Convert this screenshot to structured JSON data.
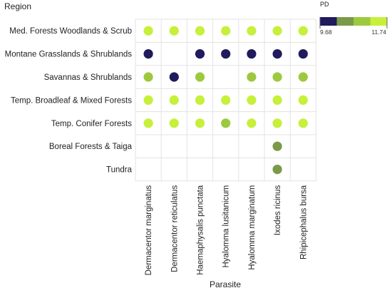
{
  "chart_data": {
    "type": "scatter",
    "title": "",
    "xlabel": "Parasite",
    "ylabel": "Region",
    "x_categories": [
      "Dermacentor marginatus",
      "Dermacentor reticulatus",
      "Haemaphysalis punctata",
      "Hyalomma lusitanicum",
      "Hyalomma marginatum",
      "Ixodes ricinus",
      "Rhipicephalus bursa"
    ],
    "y_categories": [
      "Med. Forests Woodlands & Scrub",
      "Montane Grasslands & Shrublands",
      "Savannas & Shrublands",
      "Temp. Broadleaf & Mixed Forests",
      "Temp. Conifer Forests",
      "Boreal Forests & Taiga",
      "Tundra"
    ],
    "color_variable": "PD",
    "color_range": [
      9.68,
      11.74
    ],
    "color_scale": [
      "#1f1b5c",
      "#7a9a48",
      "#9dc93f",
      "#c6f03a"
    ],
    "grid": true,
    "legend": {
      "title": "PD",
      "min_label": "9.68",
      "max_label": "11.74",
      "placement": "top-right"
    },
    "points": [
      {
        "parasite": "Dermacentor marginatus",
        "region": "Med. Forests Woodlands & Scrub",
        "pd": 11.6
      },
      {
        "parasite": "Dermacentor reticulatus",
        "region": "Med. Forests Woodlands & Scrub",
        "pd": 11.6
      },
      {
        "parasite": "Haemaphysalis punctata",
        "region": "Med. Forests Woodlands & Scrub",
        "pd": 11.6
      },
      {
        "parasite": "Hyalomma lusitanicum",
        "region": "Med. Forests Woodlands & Scrub",
        "pd": 11.6
      },
      {
        "parasite": "Hyalomma marginatum",
        "region": "Med. Forests Woodlands & Scrub",
        "pd": 11.6
      },
      {
        "parasite": "Ixodes ricinus",
        "region": "Med. Forests Woodlands & Scrub",
        "pd": 11.6
      },
      {
        "parasite": "Rhipicephalus bursa",
        "region": "Med. Forests Woodlands & Scrub",
        "pd": 11.6
      },
      {
        "parasite": "Dermacentor marginatus",
        "region": "Montane Grasslands & Shrublands",
        "pd": 9.68
      },
      {
        "parasite": "Haemaphysalis punctata",
        "region": "Montane Grasslands & Shrublands",
        "pd": 9.68
      },
      {
        "parasite": "Hyalomma lusitanicum",
        "region": "Montane Grasslands & Shrublands",
        "pd": 9.68
      },
      {
        "parasite": "Hyalomma marginatum",
        "region": "Montane Grasslands & Shrublands",
        "pd": 9.68
      },
      {
        "parasite": "Ixodes ricinus",
        "region": "Montane Grasslands & Shrublands",
        "pd": 9.68
      },
      {
        "parasite": "Rhipicephalus bursa",
        "region": "Montane Grasslands & Shrublands",
        "pd": 9.68
      },
      {
        "parasite": "Dermacentor marginatus",
        "region": "Savannas & Shrublands",
        "pd": 11.0
      },
      {
        "parasite": "Dermacentor reticulatus",
        "region": "Savannas & Shrublands",
        "pd": 9.68
      },
      {
        "parasite": "Haemaphysalis punctata",
        "region": "Savannas & Shrublands",
        "pd": 11.0
      },
      {
        "parasite": "Hyalomma marginatum",
        "region": "Savannas & Shrublands",
        "pd": 11.0
      },
      {
        "parasite": "Ixodes ricinus",
        "region": "Savannas & Shrublands",
        "pd": 11.0
      },
      {
        "parasite": "Rhipicephalus bursa",
        "region": "Savannas & Shrublands",
        "pd": 11.0
      },
      {
        "parasite": "Dermacentor marginatus",
        "region": "Temp. Broadleaf & Mixed Forests",
        "pd": 11.6
      },
      {
        "parasite": "Dermacentor reticulatus",
        "region": "Temp. Broadleaf & Mixed Forests",
        "pd": 11.6
      },
      {
        "parasite": "Haemaphysalis punctata",
        "region": "Temp. Broadleaf & Mixed Forests",
        "pd": 11.6
      },
      {
        "parasite": "Hyalomma lusitanicum",
        "region": "Temp. Broadleaf & Mixed Forests",
        "pd": 11.6
      },
      {
        "parasite": "Hyalomma marginatum",
        "region": "Temp. Broadleaf & Mixed Forests",
        "pd": 11.6
      },
      {
        "parasite": "Ixodes ricinus",
        "region": "Temp. Broadleaf & Mixed Forests",
        "pd": 11.6
      },
      {
        "parasite": "Rhipicephalus bursa",
        "region": "Temp. Broadleaf & Mixed Forests",
        "pd": 11.6
      },
      {
        "parasite": "Dermacentor marginatus",
        "region": "Temp. Conifer Forests",
        "pd": 11.6
      },
      {
        "parasite": "Dermacentor reticulatus",
        "region": "Temp. Conifer Forests",
        "pd": 11.6
      },
      {
        "parasite": "Haemaphysalis punctata",
        "region": "Temp. Conifer Forests",
        "pd": 11.6
      },
      {
        "parasite": "Hyalomma lusitanicum",
        "region": "Temp. Conifer Forests",
        "pd": 11.1
      },
      {
        "parasite": "Hyalomma marginatum",
        "region": "Temp. Conifer Forests",
        "pd": 11.6
      },
      {
        "parasite": "Ixodes ricinus",
        "region": "Temp. Conifer Forests",
        "pd": 11.6
      },
      {
        "parasite": "Rhipicephalus bursa",
        "region": "Temp. Conifer Forests",
        "pd": 11.6
      },
      {
        "parasite": "Ixodes ricinus",
        "region": "Boreal Forests & Taiga",
        "pd": 10.6
      },
      {
        "parasite": "Ixodes ricinus",
        "region": "Tundra",
        "pd": 10.6
      }
    ]
  }
}
